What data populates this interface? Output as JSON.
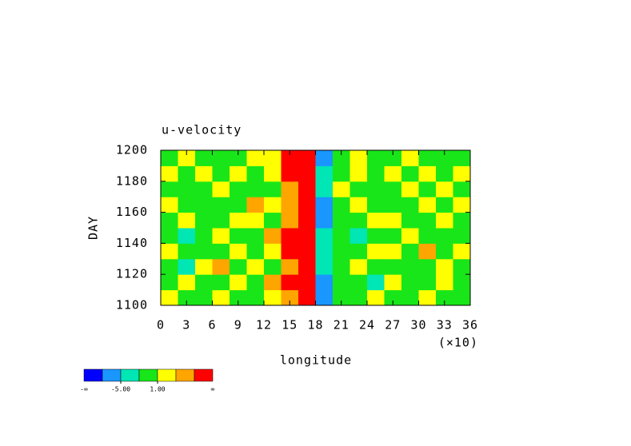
{
  "chart_data": {
    "type": "heatmap",
    "title": "u-velocity",
    "x_label": "longitude",
    "x_multiplier": "(×10)",
    "y_label": "DAY",
    "xlim": [
      0,
      36
    ],
    "xticks": [
      0,
      3,
      6,
      9,
      12,
      15,
      18,
      21,
      24,
      27,
      30,
      33,
      36
    ],
    "ylim": [
      1100,
      1200
    ],
    "yticks": [
      1100,
      1120,
      1140,
      1160,
      1180,
      1200
    ],
    "x": [
      1,
      3,
      5,
      7,
      9,
      11,
      13,
      15,
      17,
      19,
      21,
      23,
      25,
      27,
      29,
      31,
      33,
      35
    ],
    "y": [
      1105,
      1115,
      1125,
      1135,
      1145,
      1155,
      1165,
      1175,
      1185,
      1195
    ],
    "z": [
      [
        2,
        0,
        -1,
        3,
        0,
        -1,
        2,
        6,
        8,
        -6,
        0,
        -2,
        1,
        -1,
        0,
        2,
        -1,
        0
      ],
      [
        -1,
        2,
        0,
        -1,
        3,
        0,
        5,
        8,
        8,
        -7,
        -1,
        0,
        -3,
        2,
        0,
        -1,
        3,
        0
      ],
      [
        0,
        -3,
        1,
        5,
        0,
        2,
        0,
        6,
        9,
        -5,
        0,
        2,
        -1,
        0,
        -2,
        0,
        1,
        -1
      ],
      [
        3,
        0,
        -1,
        0,
        2,
        -1,
        3,
        8,
        8,
        -4,
        -2,
        0,
        1,
        3,
        -1,
        5,
        0,
        2
      ],
      [
        0,
        -3,
        0,
        2,
        0,
        0,
        5,
        9,
        9,
        -5,
        0,
        -3,
        0,
        0,
        2,
        0,
        -1,
        0
      ],
      [
        -1,
        2,
        0,
        -1,
        3,
        1,
        0,
        6,
        9,
        -8,
        -1,
        0,
        2,
        3,
        -1,
        0,
        1,
        -2
      ],
      [
        2,
        0,
        -2,
        0,
        0,
        4,
        2,
        5,
        8,
        -6,
        0,
        3,
        -1,
        0,
        0,
        2,
        -1,
        3
      ],
      [
        0,
        -1,
        0,
        2,
        -1,
        0,
        0,
        6,
        8,
        -4,
        2,
        0,
        -2,
        0,
        3,
        -1,
        2,
        0
      ],
      [
        3,
        0,
        1,
        0,
        2,
        -1,
        2,
        8,
        9,
        -5,
        -1,
        2,
        0,
        1,
        0,
        2,
        0,
        3
      ],
      [
        0,
        2,
        -1,
        -2,
        0,
        1,
        2,
        8,
        9,
        -7,
        0,
        2,
        0,
        -1,
        3,
        0,
        0,
        -1
      ]
    ],
    "colorbar": {
      "levels": [
        -8,
        -5,
        -2,
        1,
        4,
        7
      ],
      "colors": [
        "#0000ff",
        "#1a96ff",
        "#00e6b4",
        "#19e619",
        "#ffff00",
        "#ffa500",
        "#ff0000"
      ],
      "low_label": "-∞",
      "high_label": "∞",
      "ticks": [
        {
          "value": -5,
          "label": "-5.00"
        },
        {
          "value": 1,
          "label": "1.00"
        }
      ]
    }
  }
}
